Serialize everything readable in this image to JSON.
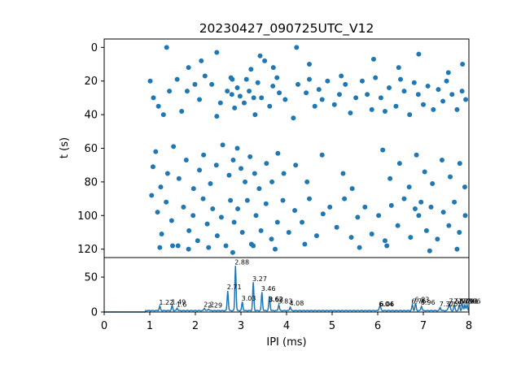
{
  "chart_data": [
    {
      "type": "scatter",
      "title": "20230427_090725UTC_V12",
      "xlabel": "",
      "ylabel": "t (s)",
      "xlim": [
        0,
        8
      ],
      "ylim": [
        125,
        -5
      ],
      "y_inverted": true,
      "yticks": [
        0,
        20,
        40,
        60,
        80,
        100,
        120
      ],
      "color": "#1f77b4",
      "points": [
        [
          1.01,
          20
        ],
        [
          1.08,
          30
        ],
        [
          1.19,
          35
        ],
        [
          1.3,
          40
        ],
        [
          1.43,
          26
        ],
        [
          1.6,
          19
        ],
        [
          1.7,
          38
        ],
        [
          1.82,
          26
        ],
        [
          1.99,
          22
        ],
        [
          2.09,
          31
        ],
        [
          2.13,
          8
        ],
        [
          2.21,
          17
        ],
        [
          2.36,
          22
        ],
        [
          2.47,
          41
        ],
        [
          2.55,
          33
        ],
        [
          2.7,
          26
        ],
        [
          2.78,
          18
        ],
        [
          2.8,
          28
        ],
        [
          2.81,
          19
        ],
        [
          2.86,
          36
        ],
        [
          2.92,
          24
        ],
        [
          2.98,
          29
        ],
        [
          3.07,
          33
        ],
        [
          3.12,
          19
        ],
        [
          3.18,
          26
        ],
        [
          3.22,
          13
        ],
        [
          3.28,
          30
        ],
        [
          3.31,
          40
        ],
        [
          3.37,
          21
        ],
        [
          3.45,
          30
        ],
        [
          3.52,
          8
        ],
        [
          3.63,
          35
        ],
        [
          3.7,
          23
        ],
        [
          3.79,
          18
        ],
        [
          3.84,
          27
        ],
        [
          3.97,
          31
        ],
        [
          4.15,
          42
        ],
        [
          4.25,
          22
        ],
        [
          4.43,
          27
        ],
        [
          4.5,
          19
        ],
        [
          4.62,
          35
        ],
        [
          4.71,
          25
        ],
        [
          4.78,
          31
        ],
        [
          4.9,
          20
        ],
        [
          5.05,
          34
        ],
        [
          5.16,
          28
        ],
        [
          5.29,
          22
        ],
        [
          5.4,
          39
        ],
        [
          5.52,
          30
        ],
        [
          5.66,
          20
        ],
        [
          5.77,
          28
        ],
        [
          5.87,
          37
        ],
        [
          5.95,
          18
        ],
        [
          6.07,
          30
        ],
        [
          6.16,
          38
        ],
        [
          6.25,
          24
        ],
        [
          6.4,
          35
        ],
        [
          6.5,
          19
        ],
        [
          6.58,
          26
        ],
        [
          6.7,
          40
        ],
        [
          6.8,
          21
        ],
        [
          6.89,
          28
        ],
        [
          7.0,
          34
        ],
        [
          7.1,
          23
        ],
        [
          7.22,
          37
        ],
        [
          7.33,
          25
        ],
        [
          7.43,
          32
        ],
        [
          7.51,
          20
        ],
        [
          7.63,
          28
        ],
        [
          7.74,
          37
        ],
        [
          7.85,
          26
        ],
        [
          7.93,
          31
        ],
        [
          1.37,
          0
        ],
        [
          1.85,
          12
        ],
        [
          2.47,
          3
        ],
        [
          3.42,
          5
        ],
        [
          3.71,
          12
        ],
        [
          4.22,
          0
        ],
        [
          4.5,
          10
        ],
        [
          5.2,
          17
        ],
        [
          5.91,
          7
        ],
        [
          6.46,
          12
        ],
        [
          6.9,
          4
        ],
        [
          7.55,
          15
        ],
        [
          7.86,
          10
        ],
        [
          1.07,
          71
        ],
        [
          1.13,
          62
        ],
        [
          1.24,
          83
        ],
        [
          1.39,
          75
        ],
        [
          1.52,
          59
        ],
        [
          1.64,
          78
        ],
        [
          1.8,
          67
        ],
        [
          1.96,
          84
        ],
        [
          2.09,
          73
        ],
        [
          2.18,
          64
        ],
        [
          2.33,
          81
        ],
        [
          2.46,
          70
        ],
        [
          2.6,
          58
        ],
        [
          2.74,
          76
        ],
        [
          2.83,
          67
        ],
        [
          2.92,
          60
        ],
        [
          3.0,
          72
        ],
        [
          3.09,
          80
        ],
        [
          3.2,
          65
        ],
        [
          3.3,
          75
        ],
        [
          3.4,
          84
        ],
        [
          3.56,
          69
        ],
        [
          3.68,
          80
        ],
        [
          3.81,
          63
        ],
        [
          3.94,
          75
        ],
        [
          4.2,
          70
        ],
        [
          4.45,
          80
        ],
        [
          4.78,
          64
        ],
        [
          5.24,
          75
        ],
        [
          5.44,
          84
        ],
        [
          6.11,
          61
        ],
        [
          6.27,
          78
        ],
        [
          6.48,
          69
        ],
        [
          6.69,
          83
        ],
        [
          6.85,
          64
        ],
        [
          7.03,
          74
        ],
        [
          7.2,
          81
        ],
        [
          7.41,
          67
        ],
        [
          7.59,
          77
        ],
        [
          7.8,
          69
        ],
        [
          7.91,
          83
        ],
        [
          1.04,
          88
        ],
        [
          1.17,
          98
        ],
        [
          1.26,
          111
        ],
        [
          1.36,
          92
        ],
        [
          1.48,
          103
        ],
        [
          1.62,
          118
        ],
        [
          1.74,
          95
        ],
        [
          1.86,
          109
        ],
        [
          1.95,
          100
        ],
        [
          2.05,
          115
        ],
        [
          2.17,
          90
        ],
        [
          2.26,
          105
        ],
        [
          2.38,
          96
        ],
        [
          2.48,
          112
        ],
        [
          2.57,
          101
        ],
        [
          2.67,
          118
        ],
        [
          2.77,
          91
        ],
        [
          2.85,
          104
        ],
        [
          2.93,
          96
        ],
        [
          3.03,
          110
        ],
        [
          3.14,
          91
        ],
        [
          3.23,
          117
        ],
        [
          3.33,
          100
        ],
        [
          3.44,
          109
        ],
        [
          3.55,
          93
        ],
        [
          3.67,
          114
        ],
        [
          3.8,
          104
        ],
        [
          3.92,
          91
        ],
        [
          4.05,
          110
        ],
        [
          4.18,
          97
        ],
        [
          4.34,
          104
        ],
        [
          4.5,
          90
        ],
        [
          4.66,
          112
        ],
        [
          4.8,
          99
        ],
        [
          4.95,
          95
        ],
        [
          5.1,
          107
        ],
        [
          5.27,
          90
        ],
        [
          5.42,
          113
        ],
        [
          5.56,
          101
        ],
        [
          5.72,
          95
        ],
        [
          5.87,
          111
        ],
        [
          6.02,
          100
        ],
        [
          6.16,
          115
        ],
        [
          6.3,
          94
        ],
        [
          6.44,
          106
        ],
        [
          6.58,
          90
        ],
        [
          6.72,
          113
        ],
        [
          6.82,
          96
        ],
        [
          6.9,
          100
        ],
        [
          6.95,
          92
        ],
        [
          7.07,
          109
        ],
        [
          7.17,
          95
        ],
        [
          7.31,
          114
        ],
        [
          7.44,
          98
        ],
        [
          7.56,
          106
        ],
        [
          7.68,
          92
        ],
        [
          7.79,
          110
        ],
        [
          7.92,
          100
        ],
        [
          1.22,
          119
        ],
        [
          1.5,
          118
        ],
        [
          1.85,
          120
        ],
        [
          2.29,
          119
        ],
        [
          2.82,
          122
        ],
        [
          3.27,
          118
        ],
        [
          3.75,
          120
        ],
        [
          4.4,
          117
        ],
        [
          5.6,
          119
        ],
        [
          6.2,
          118
        ],
        [
          7.14,
          121
        ],
        [
          7.74,
          120
        ]
      ]
    },
    {
      "type": "line",
      "title": "",
      "xlabel": "IPI (ms)",
      "ylabel": "",
      "xlim": [
        0,
        8
      ],
      "ylim": [
        0,
        78
      ],
      "xticks": [
        0,
        1,
        2,
        3,
        4,
        5,
        6,
        7,
        8
      ],
      "yticks": [
        0,
        50
      ],
      "color": "#1f77b4",
      "peaks": [
        {
          "x": 1.22,
          "y": 8,
          "label": "1.22"
        },
        {
          "x": 1.49,
          "y": 9,
          "label": "1.49"
        },
        {
          "x": 1.6,
          "y": 5,
          "label": "1.6"
        },
        {
          "x": 2.2,
          "y": 5,
          "label": "2.2"
        },
        {
          "x": 2.29,
          "y": 4,
          "label": "2.29"
        },
        {
          "x": 2.71,
          "y": 30,
          "label": "2.71"
        },
        {
          "x": 2.88,
          "y": 66,
          "label": "2.88"
        },
        {
          "x": 3.03,
          "y": 14,
          "label": "3.03"
        },
        {
          "x": 3.27,
          "y": 42,
          "label": "3.27"
        },
        {
          "x": 3.46,
          "y": 28,
          "label": "3.46"
        },
        {
          "x": 3.62,
          "y": 13,
          "label": "3.62"
        },
        {
          "x": 3.63,
          "y": 12,
          "label": "3.63"
        },
        {
          "x": 3.83,
          "y": 10,
          "label": "3.83"
        },
        {
          "x": 4.08,
          "y": 7,
          "label": "4.08"
        },
        {
          "x": 6.04,
          "y": 6,
          "label": "6.04"
        },
        {
          "x": 6.06,
          "y": 6,
          "label": "6.06"
        },
        {
          "x": 6.76,
          "y": 10,
          "label": "6.76"
        },
        {
          "x": 6.83,
          "y": 12,
          "label": "6.83"
        },
        {
          "x": 6.96,
          "y": 8,
          "label": "6.96"
        },
        {
          "x": 7.37,
          "y": 6,
          "label": "7.37"
        },
        {
          "x": 7.55,
          "y": 6,
          "label": "7.55"
        },
        {
          "x": 7.58,
          "y": 10,
          "label": "7.58"
        },
        {
          "x": 7.68,
          "y": 10,
          "label": "7.68"
        },
        {
          "x": 7.79,
          "y": 10,
          "label": "7.79"
        },
        {
          "x": 7.86,
          "y": 10,
          "label": "7.86"
        },
        {
          "x": 7.91,
          "y": 10,
          "label": "7.91"
        },
        {
          "x": 7.96,
          "y": 10,
          "label": "7.96"
        }
      ]
    }
  ]
}
